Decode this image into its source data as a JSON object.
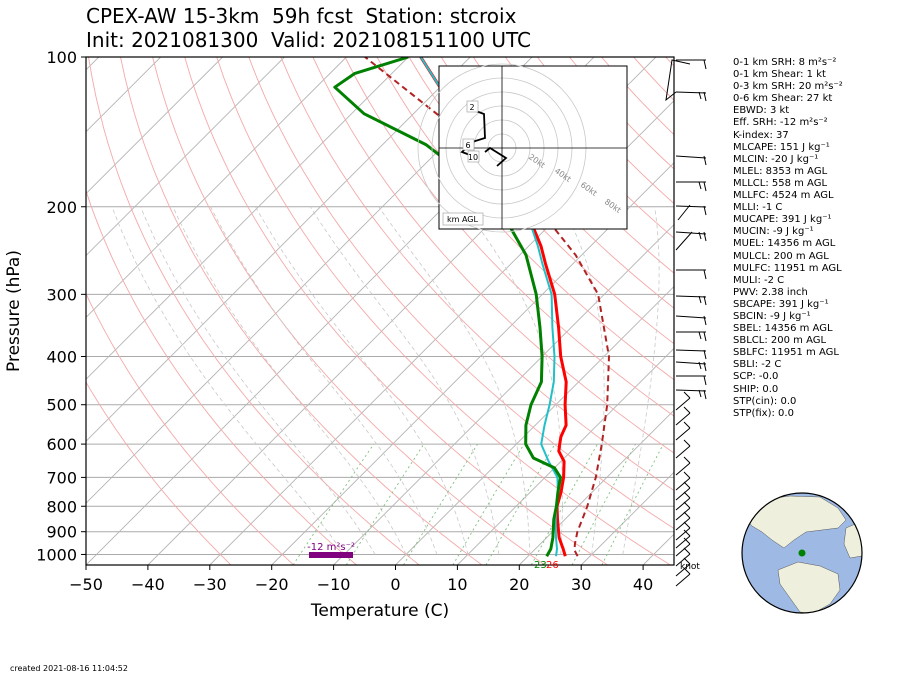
{
  "title": {
    "line1": "CPEX-AW 15-3km  59h fcst  Station: stcroix",
    "line2": "Init: 2021081300  Valid: 202108151100 UTC"
  },
  "created": "created 2021-08-16 11:04:52",
  "stats": [
    "0-1 km SRH: 8 m²s⁻²",
    "0-1 km Shear: 1 kt",
    "0-3 km SRH: 20 m²s⁻²",
    "0-6 km Shear: 27 kt",
    "EBWD: 3 kt",
    "Eff. SRH: -12 m²s⁻²",
    "K-index: 37",
    "MLCAPE: 151 J kg⁻¹",
    "MLCIN: -20 J kg⁻¹",
    "MLEL: 8353 m AGL",
    "MLLCL: 558 m AGL",
    "MLLFC: 4524 m AGL",
    "MLLI: -1 C",
    "MUCAPE: 391 J kg⁻¹",
    "MUCIN: -9 J kg⁻¹",
    "MUEL: 14356 m AGL",
    "MULCL: 200 m AGL",
    "MULFC: 11951 m AGL",
    "MULI: -2 C",
    "PWV: 2.38 inch",
    "SBCAPE: 391 J kg⁻¹",
    "SBCIN: -9 J kg⁻¹",
    "SBEL: 14356 m AGL",
    "SBLCL: 200 m AGL",
    "SBLFC: 11951 m AGL",
    "SBLI: -2 C",
    "SCP: -0.0",
    "SHIP: 0.0",
    "STP(cin): 0.0",
    "STP(fix): 0.0"
  ],
  "colors": {
    "temperature": "#ff0000",
    "dewpoint": "#008000",
    "wetbulb": "#20c0c8",
    "parcel": "#b22222",
    "srh_bar": "#800080",
    "globe_ocean": "#9db9e4",
    "globe_land": "#efefde"
  },
  "chart_data": {
    "type": "line",
    "xlabel": "Temperature (C)",
    "ylabel": "Pressure (hPa)",
    "xlim": [
      -50,
      45
    ],
    "ylim": [
      1050,
      100
    ],
    "y_scale": "log",
    "xticks": [
      -50,
      -40,
      -30,
      -20,
      -10,
      0,
      10,
      20,
      30,
      40
    ],
    "yticks": [
      100,
      200,
      300,
      400,
      500,
      600,
      700,
      800,
      900,
      1000
    ],
    "skew": "45 degrees",
    "surface_annotations": {
      "dewpoint_label": "23",
      "temperature_label": "26"
    },
    "effective_srh_label": "-12 m²s⁻²",
    "wind_unit_label": "knot",
    "series": [
      {
        "name": "temperature",
        "points": [
          [
            1008,
            26
          ],
          [
            975,
            24.5
          ],
          [
            925,
            22
          ],
          [
            850,
            18.8
          ],
          [
            800,
            16.6
          ],
          [
            750,
            15
          ],
          [
            700,
            13
          ],
          [
            650,
            10.5
          ],
          [
            620,
            8
          ],
          [
            600,
            7
          ],
          [
            580,
            6
          ],
          [
            550,
            5
          ],
          [
            500,
            1.5
          ],
          [
            450,
            -2
          ],
          [
            400,
            -7
          ],
          [
            350,
            -12
          ],
          [
            300,
            -18
          ],
          [
            260,
            -24.5
          ],
          [
            240,
            -28
          ],
          [
            200,
            -37
          ],
          [
            160,
            -47
          ],
          [
            140,
            -55
          ],
          [
            115,
            -70
          ],
          [
            100,
            -78
          ]
        ]
      },
      {
        "name": "wetbulb",
        "points": [
          [
            1008,
            24.5
          ],
          [
            975,
            23.5
          ],
          [
            925,
            21.5
          ],
          [
            850,
            18.5
          ],
          [
            800,
            16.5
          ],
          [
            750,
            14.5
          ],
          [
            700,
            12
          ],
          [
            650,
            8
          ],
          [
            600,
            4
          ],
          [
            550,
            1.5
          ],
          [
            500,
            -1
          ],
          [
            450,
            -4
          ],
          [
            400,
            -8
          ],
          [
            350,
            -13
          ],
          [
            300,
            -18.5
          ],
          [
            260,
            -25
          ],
          [
            240,
            -28.5
          ],
          [
            200,
            -37
          ],
          [
            160,
            -47.5
          ],
          [
            140,
            -55
          ],
          [
            115,
            -70
          ],
          [
            100,
            -78
          ]
        ]
      },
      {
        "name": "dewpoint",
        "points": [
          [
            1008,
            23
          ],
          [
            975,
            22.5
          ],
          [
            925,
            21
          ],
          [
            850,
            18.2
          ],
          [
            800,
            16.5
          ],
          [
            750,
            14.5
          ],
          [
            700,
            12.5
          ],
          [
            670,
            10
          ],
          [
            640,
            5
          ],
          [
            600,
            1.5
          ],
          [
            550,
            -1.5
          ],
          [
            500,
            -4
          ],
          [
            450,
            -6
          ],
          [
            400,
            -10
          ],
          [
            350,
            -15
          ],
          [
            300,
            -21
          ],
          [
            250,
            -29
          ],
          [
            220,
            -36
          ],
          [
            200,
            -42
          ],
          [
            170,
            -53
          ],
          [
            150,
            -63
          ],
          [
            130,
            -78
          ],
          [
            115,
            -87
          ],
          [
            108,
            -86
          ],
          [
            100,
            -80
          ]
        ]
      },
      {
        "name": "parcel",
        "points": [
          [
            1008,
            28
          ],
          [
            980,
            26.5
          ],
          [
            950,
            25.5
          ],
          [
            900,
            24
          ],
          [
            850,
            22.8
          ],
          [
            800,
            21.5
          ],
          [
            700,
            18.2
          ],
          [
            600,
            13.8
          ],
          [
            500,
            8.3
          ],
          [
            400,
            0.8
          ],
          [
            300,
            -11
          ],
          [
            250,
            -21
          ],
          [
            200,
            -35
          ],
          [
            150,
            -55
          ],
          [
            100,
            -87
          ]
        ]
      }
    ]
  }
}
